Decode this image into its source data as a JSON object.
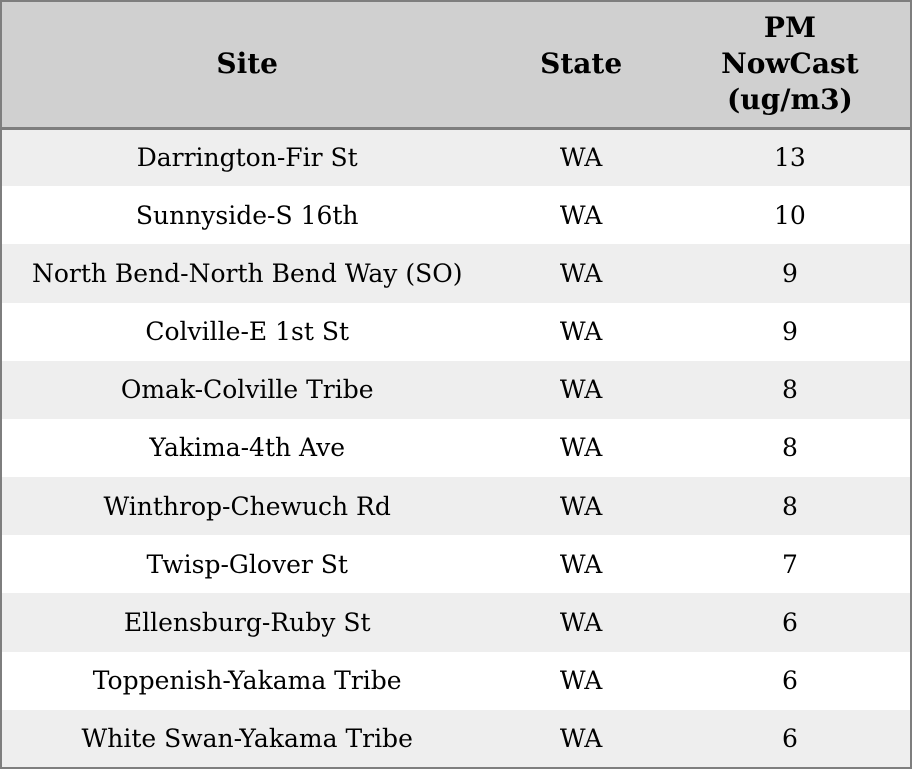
{
  "table": {
    "columns": [
      {
        "key": "site",
        "label": "Site"
      },
      {
        "key": "state",
        "label": "State"
      },
      {
        "key": "pm",
        "label": "PM\nNowCast\n(ug/m3)"
      }
    ],
    "rows": [
      {
        "site": "Darrington-Fir St",
        "state": "WA",
        "pm": "13"
      },
      {
        "site": "Sunnyside-S 16th",
        "state": "WA",
        "pm": "10"
      },
      {
        "site": "North Bend-North Bend Way (SO)",
        "state": "WA",
        "pm": "9"
      },
      {
        "site": "Colville-E 1st St",
        "state": "WA",
        "pm": "9"
      },
      {
        "site": "Omak-Colville Tribe",
        "state": "WA",
        "pm": "8"
      },
      {
        "site": "Yakima-4th Ave",
        "state": "WA",
        "pm": "8"
      },
      {
        "site": "Winthrop-Chewuch Rd",
        "state": "WA",
        "pm": "8"
      },
      {
        "site": "Twisp-Glover St",
        "state": "WA",
        "pm": "7"
      },
      {
        "site": "Ellensburg-Ruby St",
        "state": "WA",
        "pm": "6"
      },
      {
        "site": "Toppenish-Yakama Tribe",
        "state": "WA",
        "pm": "6"
      },
      {
        "site": "White Swan-Yakama Tribe",
        "state": "WA",
        "pm": "6"
      }
    ],
    "colors": {
      "header_bg": "#d0d0d0",
      "border": "#7e7e7e",
      "row_odd_bg": "#eeeeee",
      "row_even_bg": "#ffffff",
      "text": "#000000"
    }
  }
}
